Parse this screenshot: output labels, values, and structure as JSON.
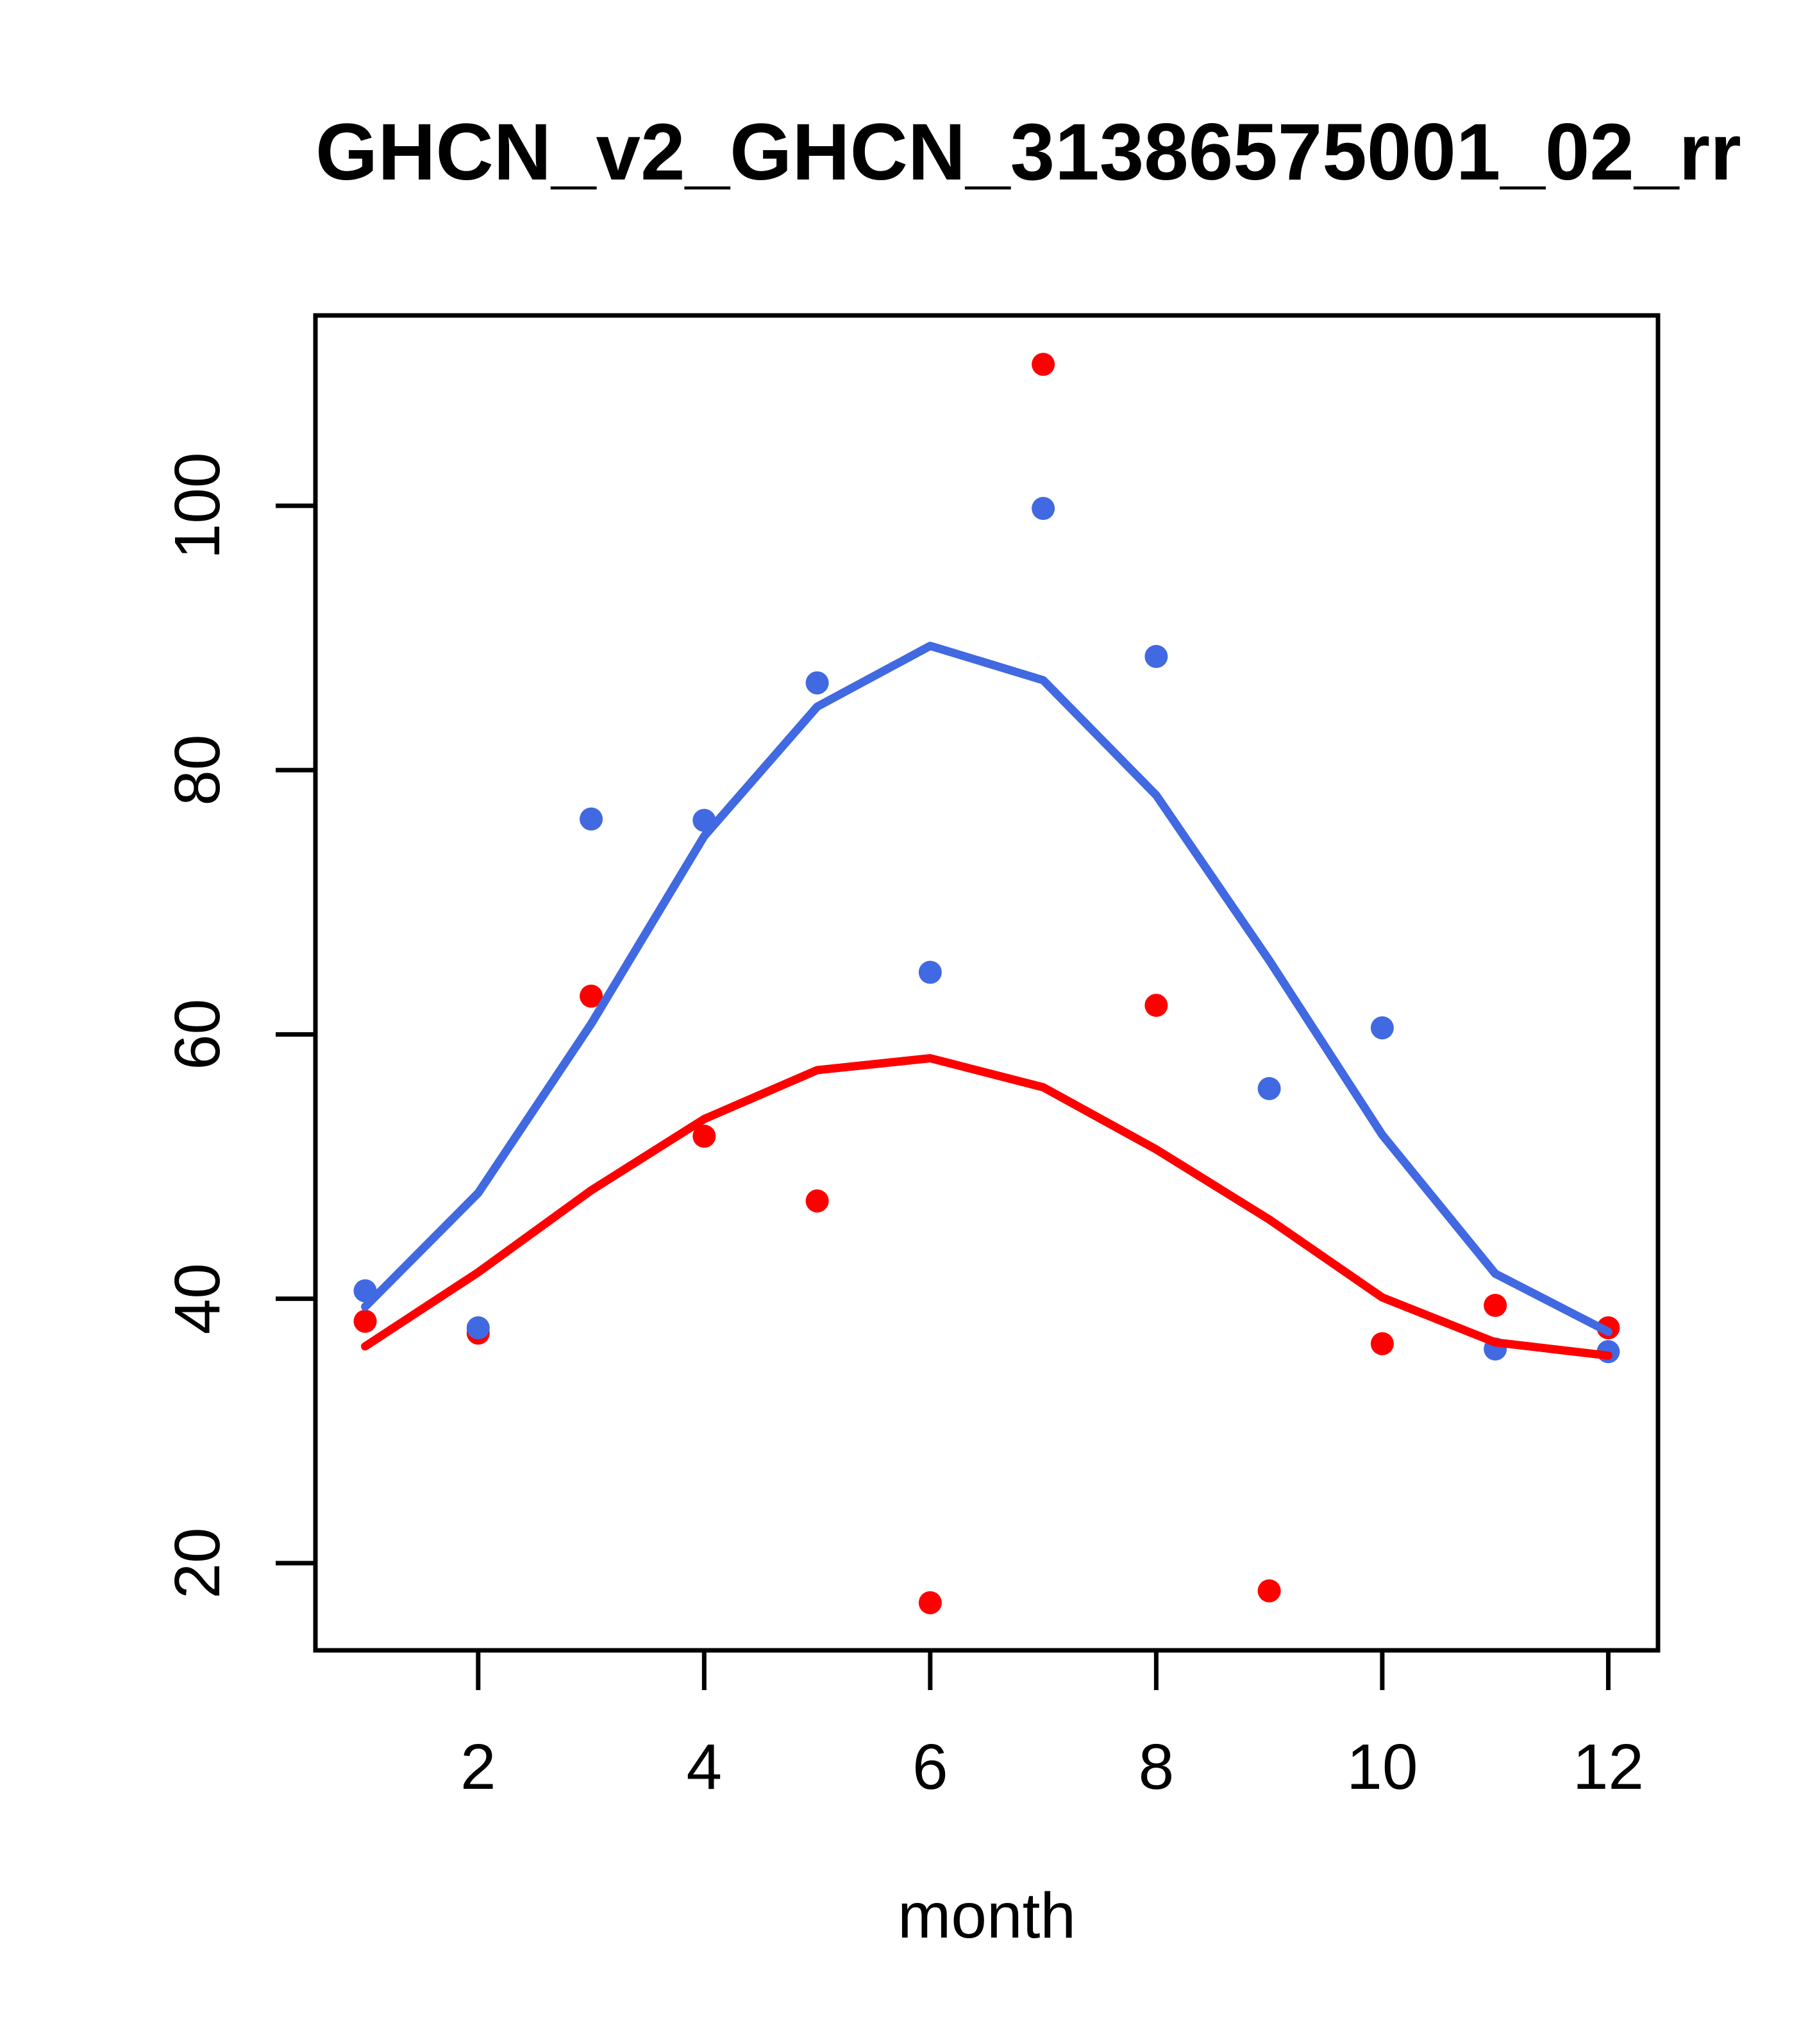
{
  "figure": {
    "title": "GHCN_v2_GHCN_31386575001_02_rr",
    "xlabel": "month"
  },
  "chart_data": {
    "type": "scatter",
    "title": "GHCN_v2_GHCN_31386575001_02_rr",
    "xlabel": "month",
    "ylabel": "",
    "grid": false,
    "legend": "none",
    "background": "#ffffff",
    "axis_color": "#000000",
    "x": [
      1,
      2,
      3,
      4,
      5,
      6,
      7,
      8,
      9,
      10,
      11,
      12
    ],
    "xticks": [
      2,
      4,
      6,
      8,
      10,
      12
    ],
    "yticks": [
      20,
      40,
      60,
      80,
      100
    ],
    "xlim": [
      0.56,
      12.44
    ],
    "ylim": [
      13.4,
      114.4
    ],
    "series": [
      {
        "name": "red-points",
        "kind": "points",
        "color": "#FF0000",
        "values": [
          38.3,
          37.4,
          62.9,
          52.3,
          47.4,
          17.0,
          110.7,
          62.2,
          17.9,
          36.6,
          39.5,
          37.8
        ]
      },
      {
        "name": "blue-lowess",
        "kind": "line",
        "color": "#4169E1",
        "values": [
          39.4,
          48.0,
          60.8,
          75.0,
          84.8,
          89.4,
          86.8,
          78.1,
          65.6,
          52.4,
          41.9,
          37.5
        ]
      },
      {
        "name": "blue-points",
        "kind": "points",
        "color": "#4169E1",
        "values": [
          40.6,
          37.8,
          76.3,
          76.2,
          86.6,
          64.7,
          99.8,
          88.6,
          55.9,
          60.5,
          36.2,
          36.0
        ]
      },
      {
        "name": "red-lowess",
        "kind": "line",
        "color": "#FF0000",
        "values": [
          36.4,
          42.0,
          48.2,
          53.6,
          57.3,
          58.2,
          56.0,
          51.3,
          46.0,
          40.1,
          36.7,
          35.7
        ]
      }
    ]
  }
}
